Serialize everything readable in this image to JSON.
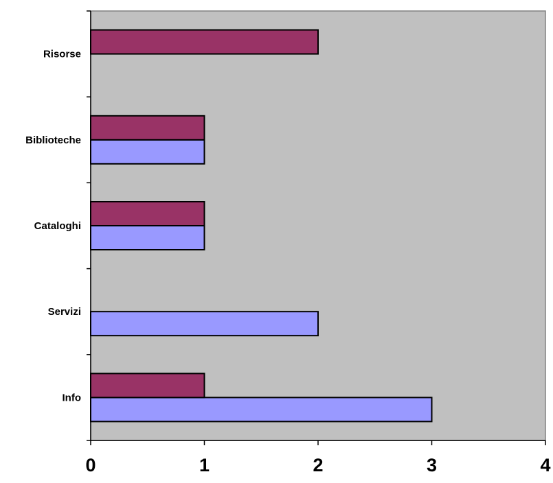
{
  "chart_data": {
    "type": "bar",
    "orientation": "horizontal",
    "categories": [
      "Info",
      "Servizi",
      "Cataloghi",
      "Biblioteche",
      "Risorse"
    ],
    "series": [
      {
        "values": [
          3,
          2,
          1,
          1,
          0
        ],
        "color": "#9999ff"
      },
      {
        "values": [
          1,
          0,
          1,
          1,
          2
        ],
        "color": "#993366"
      }
    ],
    "xlim": [
      0,
      4
    ],
    "xticks": [
      "0",
      "1",
      "2",
      "3",
      "4"
    ],
    "title": "",
    "xlabel": "",
    "ylabel": "",
    "plot_background": "#c0c0c0",
    "grid": false,
    "legend": "none"
  }
}
